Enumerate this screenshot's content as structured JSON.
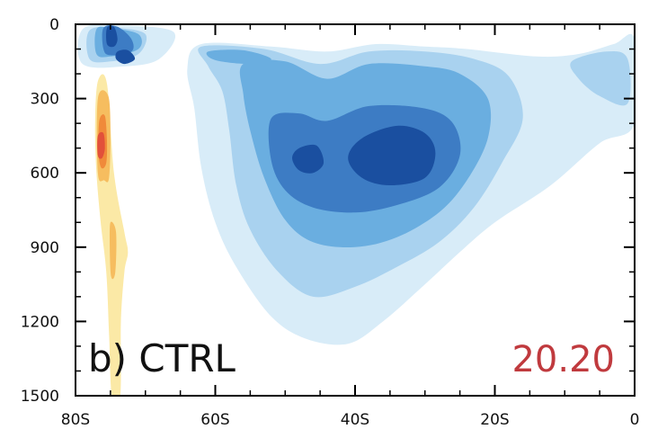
{
  "chart_data": {
    "type": "contour",
    "panel_label": "b) CTRL",
    "panel_value": "20.20",
    "panel_value_color": "#c03a3e",
    "x_axis": {
      "range": [
        -80,
        0
      ],
      "ticks": [
        {
          "value": -80,
          "label": "80S"
        },
        {
          "value": -60,
          "label": "60S"
        },
        {
          "value": -40,
          "label": "40S"
        },
        {
          "value": -20,
          "label": "20S"
        },
        {
          "value": 0,
          "label": "0"
        }
      ],
      "minor_step": 5
    },
    "y_axis": {
      "range": [
        0,
        1500
      ],
      "inverted": true,
      "ticks": [
        {
          "value": 0,
          "label": "0"
        },
        {
          "value": 300,
          "label": "300"
        },
        {
          "value": 600,
          "label": "600"
        },
        {
          "value": 900,
          "label": "900"
        },
        {
          "value": 1200,
          "label": "1200"
        },
        {
          "value": 1500,
          "label": "1500"
        }
      ],
      "minor_step": 100
    },
    "grid": false,
    "colors": {
      "blue_1": "#d8ecf8",
      "blue_2": "#a9d2ef",
      "blue_3": "#6aaee0",
      "blue_4": "#3d7cc4",
      "blue_5": "#1a4fa0",
      "yellow_1": "#fbe9a6",
      "orange_1": "#f6bd5f",
      "orange_2": "#f08a3a",
      "red_1": "#e2503a"
    },
    "filled_contours": [
      {
        "level": "blue_1",
        "points": [
          [
            -62,
            80
          ],
          [
            -52,
            90
          ],
          [
            -44,
            110
          ],
          [
            -37,
            80
          ],
          [
            -30,
            90
          ],
          [
            -24,
            100
          ],
          [
            -14,
            130
          ],
          [
            -8,
            120
          ],
          [
            -3,
            80
          ],
          [
            0,
            60
          ],
          [
            0,
            400
          ],
          [
            -5,
            480
          ],
          [
            -12,
            650
          ],
          [
            -20,
            800
          ],
          [
            -25,
            920
          ],
          [
            -30,
            1050
          ],
          [
            -36,
            1200
          ],
          [
            -41,
            1290
          ],
          [
            -47,
            1270
          ],
          [
            -52,
            1180
          ],
          [
            -57,
            980
          ],
          [
            -60,
            800
          ],
          [
            -62,
            580
          ],
          [
            -63,
            340
          ],
          [
            -64,
            180
          ]
        ]
      },
      {
        "level": "blue_1",
        "points": [
          [
            -79,
            20
          ],
          [
            -74,
            5
          ],
          [
            -66,
            30
          ],
          [
            -68,
            140
          ],
          [
            -73,
            170
          ],
          [
            -79,
            160
          ]
        ]
      },
      {
        "level": "blue_2",
        "points": [
          [
            -62,
            90
          ],
          [
            -53,
            100
          ],
          [
            -45,
            160
          ],
          [
            -38,
            110
          ],
          [
            -30,
            110
          ],
          [
            -23,
            140
          ],
          [
            -18,
            210
          ],
          [
            -16,
            380
          ],
          [
            -19,
            560
          ],
          [
            -23,
            740
          ],
          [
            -28,
            880
          ],
          [
            -34,
            980
          ],
          [
            -40,
            1060
          ],
          [
            -46,
            1100
          ],
          [
            -51,
            1000
          ],
          [
            -55,
            830
          ],
          [
            -57,
            650
          ],
          [
            -58,
            430
          ],
          [
            -59,
            270
          ],
          [
            -61,
            170
          ]
        ]
      },
      {
        "level": "blue_2",
        "points": [
          [
            -78,
            25
          ],
          [
            -74,
            15
          ],
          [
            -70,
            40
          ],
          [
            -71,
            120
          ],
          [
            -75,
            150
          ],
          [
            -78,
            140
          ]
        ]
      },
      {
        "level": "blue_2",
        "points": [
          [
            -9,
            150
          ],
          [
            -4,
            110
          ],
          [
            -1,
            140
          ],
          [
            -1,
            320
          ],
          [
            -5,
            290
          ],
          [
            -8,
            220
          ]
        ]
      },
      {
        "level": "blue_3",
        "points": [
          [
            -56,
            160
          ],
          [
            -50,
            150
          ],
          [
            -44,
            220
          ],
          [
            -38,
            160
          ],
          [
            -30,
            170
          ],
          [
            -25,
            200
          ],
          [
            -21,
            300
          ],
          [
            -21,
            460
          ],
          [
            -24,
            630
          ],
          [
            -28,
            760
          ],
          [
            -34,
            860
          ],
          [
            -40,
            900
          ],
          [
            -46,
            880
          ],
          [
            -50,
            790
          ],
          [
            -53,
            620
          ],
          [
            -55,
            430
          ],
          [
            -56,
            280
          ]
        ]
      },
      {
        "level": "blue_3",
        "points": [
          [
            -61,
            110
          ],
          [
            -56,
            105
          ],
          [
            -52,
            140
          ],
          [
            -55,
            160
          ],
          [
            -60,
            145
          ]
        ]
      },
      {
        "level": "blue_3",
        "points": [
          [
            -77,
            20
          ],
          [
            -75,
            15
          ],
          [
            -71,
            40
          ],
          [
            -71,
            100
          ],
          [
            -75,
            130
          ],
          [
            -77,
            120
          ]
        ]
      },
      {
        "level": "blue_4",
        "points": [
          [
            -52,
            380
          ],
          [
            -48,
            360
          ],
          [
            -44,
            390
          ],
          [
            -38,
            330
          ],
          [
            -30,
            340
          ],
          [
            -26,
            400
          ],
          [
            -25,
            530
          ],
          [
            -28,
            660
          ],
          [
            -34,
            730
          ],
          [
            -40,
            760
          ],
          [
            -46,
            740
          ],
          [
            -50,
            670
          ],
          [
            -52,
            550
          ]
        ]
      },
      {
        "level": "blue_4",
        "points": [
          [
            -76,
            15
          ],
          [
            -74,
            10
          ],
          [
            -72,
            60
          ],
          [
            -72,
            110
          ],
          [
            -75,
            125
          ],
          [
            -76,
            100
          ]
        ]
      },
      {
        "level": "blue_5",
        "points": [
          [
            -48,
            500
          ],
          [
            -45.5,
            490
          ],
          [
            -44.5,
            560
          ],
          [
            -46,
            600
          ],
          [
            -48,
            590
          ],
          [
            -49,
            540
          ]
        ]
      },
      {
        "level": "blue_5",
        "points": [
          [
            -39,
            460
          ],
          [
            -34,
            410
          ],
          [
            -30,
            440
          ],
          [
            -28.5,
            520
          ],
          [
            -30,
            620
          ],
          [
            -35,
            650
          ],
          [
            -39,
            620
          ],
          [
            -41,
            540
          ]
        ]
      },
      {
        "level": "blue_5",
        "points": [
          [
            -75.5,
            15
          ],
          [
            -74.5,
            10
          ],
          [
            -74,
            60
          ],
          [
            -74.5,
            90
          ],
          [
            -75.5,
            80
          ]
        ]
      },
      {
        "level": "blue_5",
        "points": [
          [
            -74,
            110
          ],
          [
            -72.5,
            105
          ],
          [
            -71.5,
            140
          ],
          [
            -73,
            160
          ],
          [
            -74.2,
            140
          ]
        ]
      },
      {
        "level": "yellow_1",
        "points": [
          [
            -76.8,
            230
          ],
          [
            -75.5,
            240
          ],
          [
            -74.5,
            600
          ],
          [
            -73,
            840
          ],
          [
            -72.5,
            920
          ],
          [
            -73,
            1000
          ],
          [
            -73.5,
            1200
          ],
          [
            -73.6,
            1500
          ],
          [
            -74.8,
            1500
          ],
          [
            -75.2,
            1250
          ],
          [
            -75.6,
            1000
          ],
          [
            -76.4,
            800
          ],
          [
            -77,
            600
          ],
          [
            -77.2,
            400
          ]
        ]
      },
      {
        "level": "orange_1",
        "points": [
          [
            -76.8,
            300
          ],
          [
            -75.3,
            290
          ],
          [
            -75,
            450
          ],
          [
            -75.2,
            620
          ],
          [
            -75.9,
            630
          ],
          [
            -76.8,
            600
          ]
        ]
      },
      {
        "level": "orange_1",
        "points": [
          [
            -75,
            800
          ],
          [
            -74.2,
            840
          ],
          [
            -74.3,
            1000
          ],
          [
            -74.9,
            1020
          ],
          [
            -75.1,
            900
          ]
        ]
      },
      {
        "level": "orange_2",
        "points": [
          [
            -76.6,
            390
          ],
          [
            -75.8,
            370
          ],
          [
            -75.5,
            470
          ],
          [
            -75.6,
            560
          ],
          [
            -76.3,
            580
          ],
          [
            -76.7,
            520
          ]
        ]
      },
      {
        "level": "red_1",
        "points": [
          [
            -76.8,
            450
          ],
          [
            -76,
            440
          ],
          [
            -75.8,
            500
          ],
          [
            -76.2,
            540
          ],
          [
            -76.8,
            530
          ]
        ]
      }
    ]
  }
}
